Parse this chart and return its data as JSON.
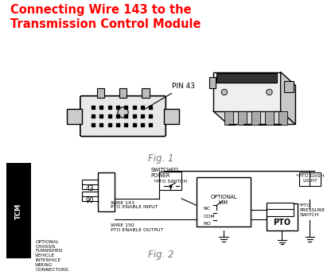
{
  "title_line1": "Connecting Wire 143 to the",
  "title_line2": "Transmission Control Module",
  "title_color": "#FF0000",
  "title_fontsize": 10.5,
  "bg_color": "#FFFFFF",
  "fig1_label": "Fig. 1",
  "fig2_label": "Fig. 2",
  "pin43_label": "PIN 43",
  "wire143_label": "WIRE 143\nPTO ENABLE INPUT",
  "wire150_label": "WIRE 150\nPTO ENABLE OUTPUT",
  "switched_power_label": "SWITCHED\nPOWER",
  "pto_switch_label": "*PTO SWITCH",
  "optional_vim_label": "OPTIONAL\nVIM",
  "pto_label": "PTO",
  "pto_dash_label": "*PTO DASH\nLIGHT",
  "pto_pressure_label": "*PTO\nPRESSURE\nSWITCH",
  "tcm_label": "TCM",
  "optional_chassis_label": "OPTIONAL\nCHASSIS\nFURNISHED\nVEHICLE\nINTERFACE\nWIRING\nCONNECTORS.",
  "pin43_text": "43",
  "pin90_text": "90",
  "nc_label": "NC",
  "com_label": "COM",
  "no_label": "NO"
}
